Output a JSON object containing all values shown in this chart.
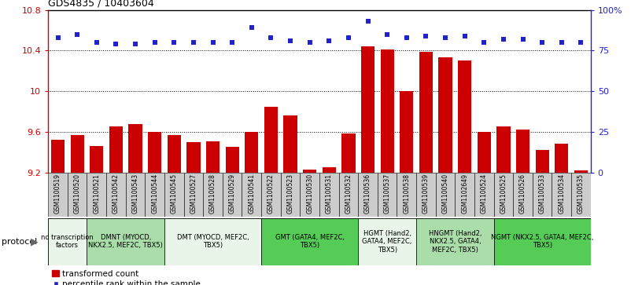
{
  "title": "GDS4835 / 10403604",
  "samples": [
    "GSM1100519",
    "GSM1100520",
    "GSM1100521",
    "GSM1100542",
    "GSM1100543",
    "GSM1100544",
    "GSM1100545",
    "GSM1100527",
    "GSM1100528",
    "GSM1100529",
    "GSM1100541",
    "GSM1100522",
    "GSM1100523",
    "GSM1100530",
    "GSM1100531",
    "GSM1100532",
    "GSM1100536",
    "GSM1100537",
    "GSM1100538",
    "GSM1100539",
    "GSM1100540",
    "GSM1102649",
    "GSM1100524",
    "GSM1100525",
    "GSM1100526",
    "GSM1100533",
    "GSM1100534",
    "GSM1100535"
  ],
  "transformed_count": [
    9.52,
    9.57,
    9.46,
    9.65,
    9.68,
    9.6,
    9.57,
    9.5,
    9.51,
    9.45,
    9.6,
    9.85,
    9.76,
    9.23,
    9.25,
    9.58,
    10.44,
    10.41,
    10.0,
    10.39,
    10.33,
    10.3,
    9.6,
    9.65,
    9.62,
    9.42,
    9.48,
    9.22
  ],
  "percentile_rank": [
    83,
    85,
    80,
    79,
    79,
    80,
    80,
    80,
    80,
    80,
    89,
    83,
    81,
    80,
    81,
    83,
    93,
    85,
    83,
    84,
    83,
    84,
    80,
    82,
    82,
    80,
    80,
    80
  ],
  "ylim_left": [
    9.2,
    10.8
  ],
  "ylim_right": [
    0,
    100
  ],
  "yticks_left": [
    9.2,
    9.6,
    10.0,
    10.4,
    10.8
  ],
  "ytick_labels_left": [
    "9.2",
    "9.6",
    "10",
    "10.4",
    "10.8"
  ],
  "yticks_right": [
    0,
    25,
    50,
    75,
    100
  ],
  "ytick_labels_right": [
    "0",
    "25",
    "50",
    "75",
    "100%"
  ],
  "bar_color": "#cc0000",
  "dot_color": "#2222cc",
  "protocols": [
    {
      "label": "no transcription\nfactors",
      "start": 0,
      "end": 2,
      "color": "#e8f5e8"
    },
    {
      "label": "DMNT (MYOCD,\nNKX2.5, MEF2C, TBX5)",
      "start": 2,
      "end": 6,
      "color": "#aaddaa"
    },
    {
      "label": "DMT (MYOCD, MEF2C,\nTBX5)",
      "start": 6,
      "end": 11,
      "color": "#e8f5e8"
    },
    {
      "label": "GMT (GATA4, MEF2C,\nTBX5)",
      "start": 11,
      "end": 16,
      "color": "#55cc55"
    },
    {
      "label": "HGMT (Hand2,\nGATA4, MEF2C,\nTBX5)",
      "start": 16,
      "end": 19,
      "color": "#e8f5e8"
    },
    {
      "label": "HNGMT (Hand2,\nNKX2.5, GATA4,\nMEF2C, TBX5)",
      "start": 19,
      "end": 23,
      "color": "#aaddaa"
    },
    {
      "label": "NGMT (NKX2.5, GATA4, MEF2C,\nTBX5)",
      "start": 23,
      "end": 28,
      "color": "#55cc55"
    }
  ],
  "legend_bar_label": "transformed count",
  "legend_dot_label": "percentile rank within the sample",
  "protocol_label": "protocol",
  "sample_box_color": "#cccccc",
  "title_fontsize": 9,
  "axis_fontsize": 8,
  "sample_fontsize": 5.5,
  "proto_fontsize": 6.0,
  "legend_fontsize": 7.5
}
